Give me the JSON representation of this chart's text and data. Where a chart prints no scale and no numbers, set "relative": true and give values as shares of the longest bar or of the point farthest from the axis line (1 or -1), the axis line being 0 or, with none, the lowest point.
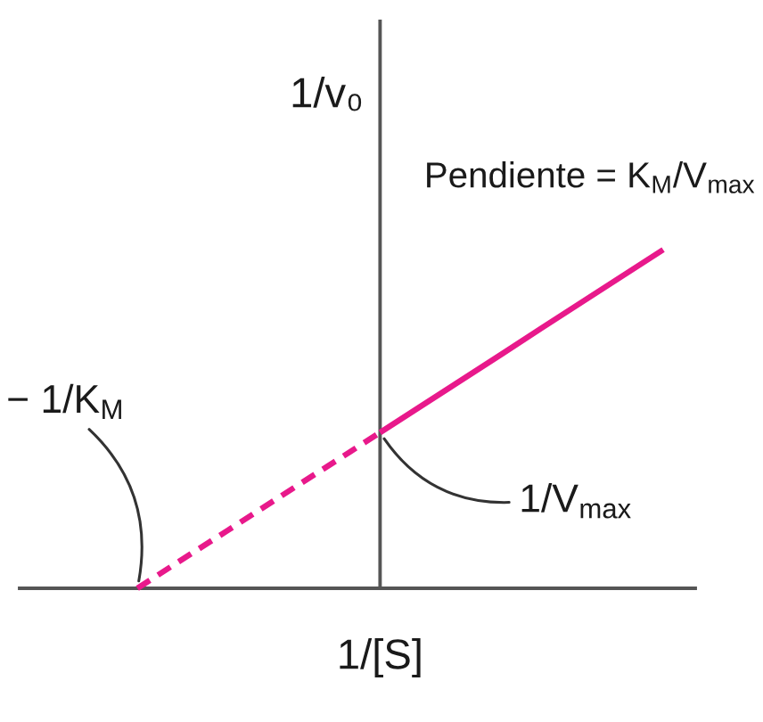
{
  "chart_data": {
    "type": "line",
    "relative": true,
    "xlabel": "1/[S]",
    "ylabel": "1/v₀",
    "categories": [
      null,
      null,
      null,
      null,
      null,
      null,
      null,
      null,
      null,
      null,
      null,
      null,
      null,
      null
    ],
    "series": [
      {
        "color": "#e8198b",
        "line_style": "dashed",
        "values": [
          0,
          0.077,
          0.153,
          0.23,
          0.307,
          0.383,
          0.46,
          null,
          null,
          null,
          null,
          null,
          null,
          null
        ]
      },
      {
        "color": "#e8198b",
        "line_style": "solid",
        "values": [
          null,
          null,
          null,
          null,
          null,
          null,
          0.46,
          0.537,
          0.614,
          0.691,
          0.769,
          0.846,
          0.923,
          1
        ]
      }
    ],
    "annotations": [
      "Pendiente = K$_{M}$/V$_{max}$",
      "− 1/K$_{M}$",
      "1/V$_{max}$"
    ]
  }
}
